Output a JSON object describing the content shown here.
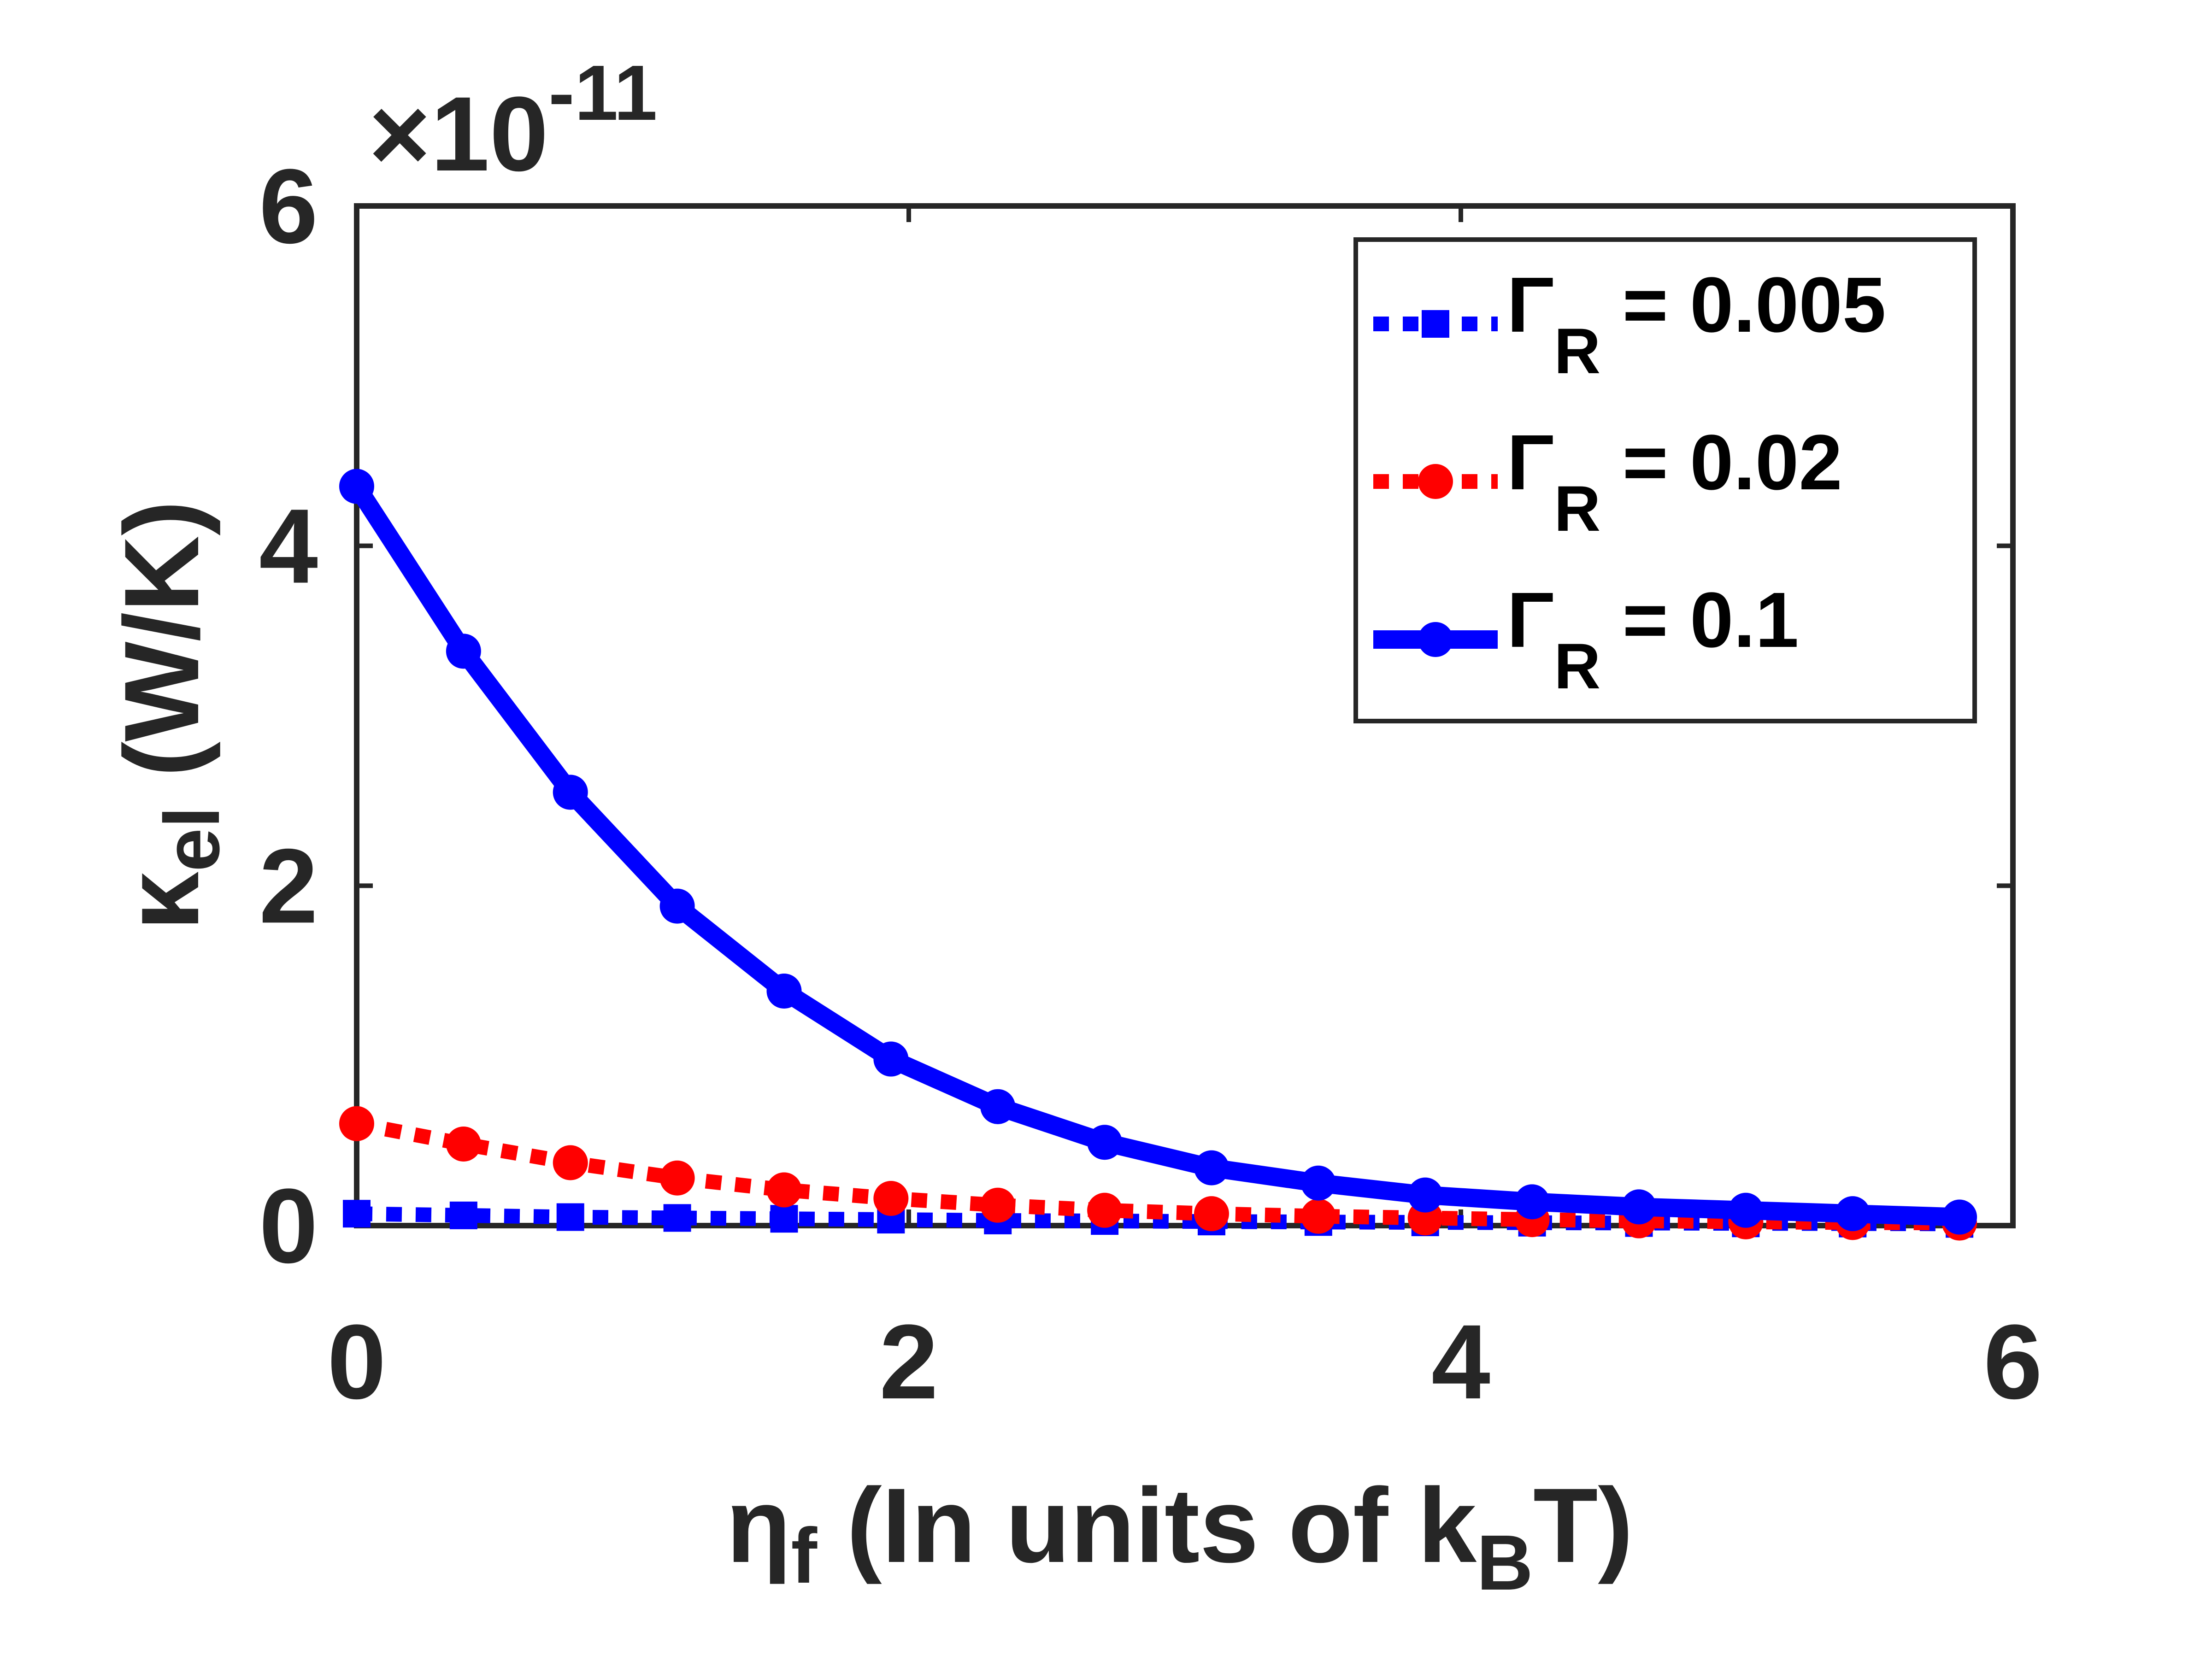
{
  "chart_data": {
    "type": "line",
    "x_axis": {
      "symbol": "η",
      "subscript": "f",
      "label_text": " (In units of k",
      "label_sub": "B",
      "label_end": "T)",
      "range": [
        0,
        6
      ],
      "ticks": [
        0,
        2,
        4,
        6
      ],
      "tick_labels": [
        "0",
        "2",
        "4",
        "6"
      ]
    },
    "y_axis": {
      "symbol": "κ",
      "subscript": "el",
      "unit": " (W/K)",
      "range": [
        0,
        6
      ],
      "ticks": [
        0,
        2,
        4,
        6
      ],
      "tick_labels": [
        "0",
        "2",
        "4",
        "6"
      ],
      "exponent_prefix": "×10",
      "exponent": "-11",
      "scale": 1e-11
    },
    "grid": false,
    "legend_position": "top-right",
    "x": [
      0,
      0.3871,
      0.7742,
      1.1613,
      1.5484,
      1.9355,
      2.3226,
      2.7097,
      3.0968,
      3.4839,
      3.871,
      4.2581,
      4.6452,
      5.0323,
      5.4194,
      5.8065
    ],
    "series": [
      {
        "name": "Γ_R = 0.005",
        "legend_symbol": "Γ",
        "legend_sub": "R",
        "legend_value": " = 0.005",
        "color": "#0000ff",
        "line_style": "dotted",
        "marker": "square",
        "values": [
          0.07,
          0.06,
          0.05,
          0.045,
          0.04,
          0.035,
          0.03,
          0.027,
          0.024,
          0.021,
          0.019,
          0.017,
          0.015,
          0.013,
          0.012,
          0.01
        ]
      },
      {
        "name": "Γ_R = 0.02",
        "legend_symbol": "Γ",
        "legend_sub": "R",
        "legend_value": " = 0.02",
        "color": "#ff0000",
        "line_style": "dotted",
        "marker": "circle",
        "values": [
          0.6,
          0.48,
          0.37,
          0.28,
          0.21,
          0.16,
          0.12,
          0.09,
          0.07,
          0.055,
          0.045,
          0.035,
          0.028,
          0.022,
          0.018,
          0.015
        ]
      },
      {
        "name": "Γ_R = 0.1",
        "legend_symbol": "Γ",
        "legend_sub": "R",
        "legend_value": " = 0.1",
        "color": "#0000ff",
        "line_style": "solid",
        "marker": "circle",
        "values": [
          4.35,
          3.38,
          2.55,
          1.88,
          1.38,
          0.98,
          0.7,
          0.49,
          0.34,
          0.25,
          0.18,
          0.14,
          0.11,
          0.09,
          0.07,
          0.05
        ]
      }
    ]
  }
}
